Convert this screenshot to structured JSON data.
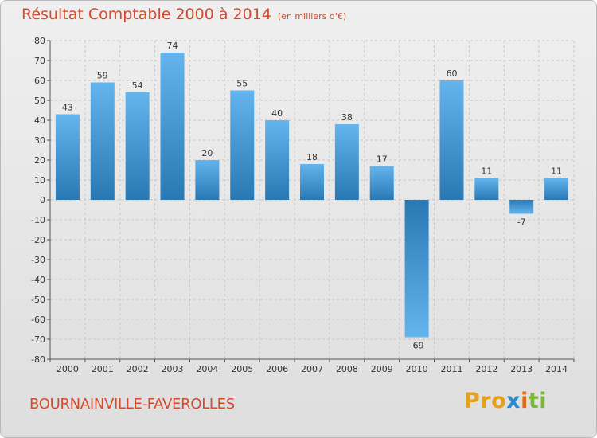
{
  "title": "Résultat Comptable 2000 à 2014",
  "subtitle": "(en milliers d'€)",
  "town": "BOURNAINVILLE-FAVEROLLES",
  "logo": {
    "part1": "Pro",
    "part2": "x",
    "part3": "i",
    "part4": "ti"
  },
  "colors": {
    "bar_light": "#64b5ee",
    "bar_dark": "#2878b4",
    "title": "#d14b2e"
  },
  "chart_data": {
    "type": "bar",
    "categories": [
      "2000",
      "2001",
      "2002",
      "2003",
      "2004",
      "2005",
      "2006",
      "2007",
      "2008",
      "2009",
      "2010",
      "2011",
      "2012",
      "2013",
      "2014"
    ],
    "values": [
      43,
      59,
      54,
      74,
      20,
      55,
      40,
      18,
      38,
      17,
      -69,
      60,
      11,
      -7,
      11
    ],
    "ylim": [
      -80,
      80
    ],
    "yticks": [
      80,
      70,
      60,
      50,
      40,
      30,
      20,
      10,
      0,
      -10,
      -20,
      -30,
      -40,
      -50,
      -60,
      -70,
      -80
    ],
    "grid": true
  }
}
